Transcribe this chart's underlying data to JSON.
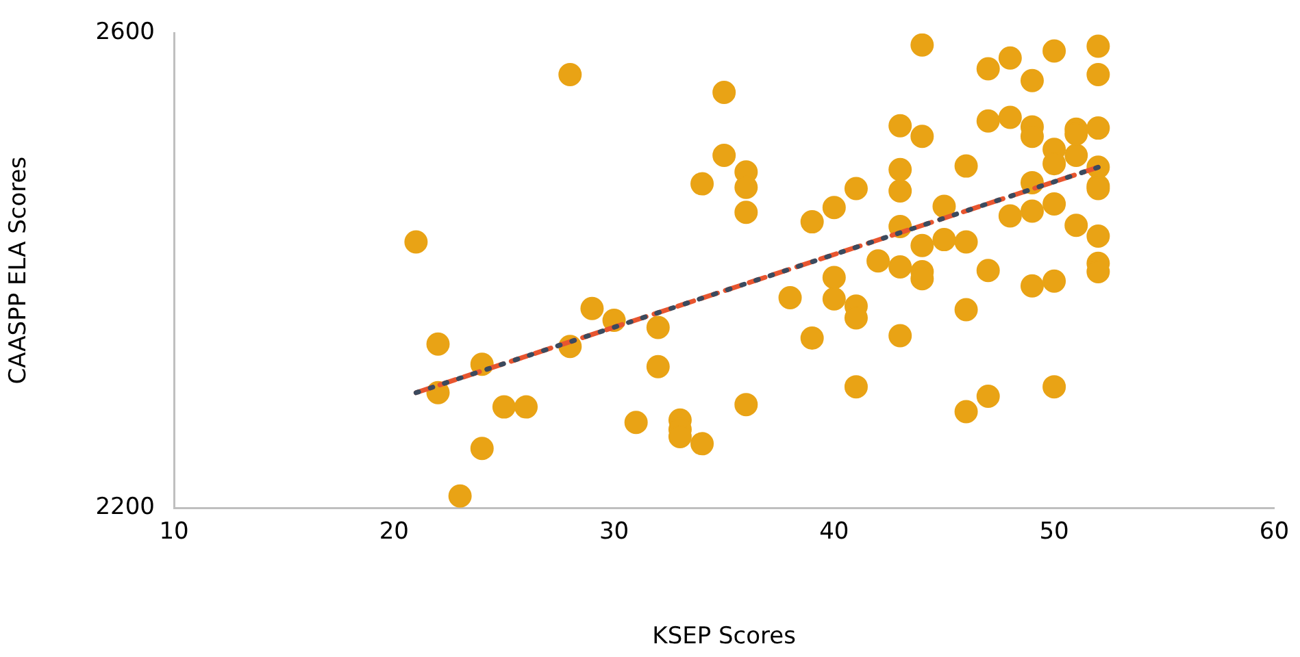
{
  "chart_data": {
    "type": "scatter",
    "xlabel": "KSEP Scores",
    "ylabel": "CAASPP ELA Scores",
    "xlim": [
      10,
      60
    ],
    "xticks": [
      10,
      20,
      30,
      40,
      50,
      60
    ],
    "ylim": [
      2200,
      2600
    ],
    "yticks": [
      2200,
      2600
    ],
    "grid": false,
    "legend": false,
    "marker": "circle",
    "series": [
      {
        "type": "scatter",
        "color": "#e9a315",
        "x": [
          21,
          22,
          22,
          24,
          24,
          23,
          25,
          26,
          28,
          28,
          29,
          30,
          31,
          32,
          32,
          33,
          33,
          33,
          34,
          34,
          35,
          35,
          36,
          36,
          36,
          36,
          38,
          39,
          39,
          40,
          40,
          40,
          41,
          41,
          41,
          41,
          42,
          43,
          43,
          43,
          43,
          43,
          43,
          44,
          44,
          44,
          44,
          44,
          45,
          45,
          46,
          46,
          46,
          46,
          47,
          47,
          47,
          47,
          48,
          48,
          48,
          49,
          49,
          49,
          49,
          49,
          49,
          50,
          50,
          50,
          50,
          50,
          50,
          51,
          51,
          51,
          51,
          52,
          52,
          52,
          52,
          52,
          52,
          52,
          52,
          52
        ],
        "values": [
          2424,
          2338,
          2297,
          2321,
          2250,
          2210,
          2285,
          2285,
          2565,
          2336,
          2368,
          2358,
          2272,
          2352,
          2319,
          2274,
          2266,
          2260,
          2473,
          2254,
          2550,
          2497,
          2483,
          2470,
          2449,
          2287,
          2377,
          2441,
          2343,
          2453,
          2394,
          2376,
          2469,
          2370,
          2360,
          2302,
          2408,
          2522,
          2485,
          2467,
          2437,
          2403,
          2345,
          2590,
          2513,
          2421,
          2399,
          2393,
          2454,
          2426,
          2488,
          2424,
          2367,
          2281,
          2570,
          2526,
          2400,
          2294,
          2579,
          2529,
          2446,
          2560,
          2521,
          2513,
          2474,
          2450,
          2387,
          2585,
          2502,
          2490,
          2456,
          2391,
          2302,
          2519,
          2515,
          2497,
          2438,
          2589,
          2565,
          2520,
          2487,
          2471,
          2469,
          2429,
          2406,
          2399
        ]
      },
      {
        "type": "line",
        "color": "#e8552f",
        "line_style": "dashed",
        "marker": "none",
        "x": [
          21,
          52
        ],
        "values": [
          2297,
          2487
        ]
      },
      {
        "type": "line",
        "color": "#3b4a5e",
        "line_style": "dotted",
        "marker": "none",
        "x": [
          21,
          52
        ],
        "values": [
          2297,
          2487
        ]
      }
    ]
  }
}
